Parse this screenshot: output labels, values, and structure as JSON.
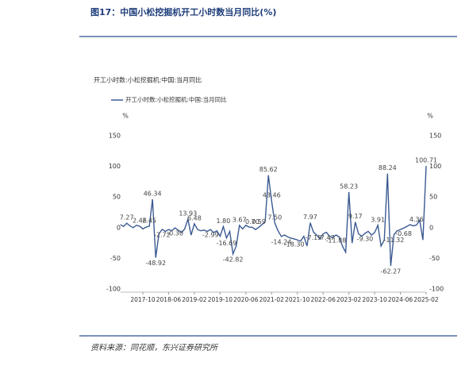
{
  "header": {
    "title": "图17：中国小松挖掘机开工小时数当月同比(%)"
  },
  "chart_data": {
    "type": "line",
    "title": "开工小时数:小松挖掘机:中国:当月同比",
    "y_unit": "%",
    "y2_unit": "%",
    "categories": [
      null,
      null,
      null,
      null,
      null,
      null,
      null,
      "2017-10",
      null,
      null,
      null,
      null,
      null,
      null,
      null,
      "2018-06",
      null,
      null,
      null,
      null,
      null,
      null,
      null,
      "2019-02",
      null,
      null,
      null,
      null,
      null,
      null,
      null,
      "2019-10",
      null,
      null,
      null,
      null,
      null,
      null,
      null,
      "2020-06",
      null,
      null,
      null,
      null,
      null,
      null,
      null,
      "2021-02",
      null,
      null,
      null,
      null,
      null,
      null,
      null,
      "2021-10",
      null,
      null,
      null,
      null,
      null,
      null,
      null,
      "2022-06",
      null,
      null,
      null,
      null,
      null,
      null,
      null,
      "2023-02",
      null,
      null,
      null,
      null,
      null,
      null,
      null,
      "2023-10",
      null,
      null,
      null,
      null,
      null,
      null,
      null,
      "2024-06",
      null,
      null,
      null,
      null,
      null,
      null,
      null,
      "2025-02"
    ],
    "series": [
      {
        "name": "开工小时数:小松挖掘机:中国:当月同比",
        "color": "#3b5a92",
        "values": [
          5,
          2,
          7.27,
          3,
          0,
          4,
          2.46,
          -2,
          1,
          2.45,
          46.34,
          -48.92,
          -10,
          -2.72,
          -6,
          -3,
          -5,
          -0.3,
          -4,
          -8,
          -2,
          13.93,
          -12,
          6.48,
          -3,
          -5,
          -4,
          -6,
          -2.99,
          -8,
          -5,
          -14,
          1.8,
          -16.69,
          -6,
          -42.82,
          -30,
          3.67,
          -2,
          4,
          1,
          0.7,
          -3,
          0.59,
          5,
          10,
          85.62,
          43.46,
          7.5,
          -5,
          -14.24,
          -12,
          -15,
          -17,
          -18.3,
          -20,
          -22,
          -14,
          -30,
          7.97,
          -7.15,
          -12,
          -18,
          -10,
          -7.47,
          -14,
          -16,
          -11.88,
          -15,
          -30,
          -40,
          58.23,
          -25,
          9.17,
          -10,
          -14,
          -9.3,
          -6,
          -12,
          -8,
          3.91,
          -30,
          -20,
          88.24,
          -62.27,
          -11.32,
          -5,
          -3,
          -0.68,
          2,
          5,
          3,
          4.36,
          12,
          -20,
          100.71
        ],
        "value_labels": [
          null,
          null,
          "7.27",
          null,
          null,
          null,
          "2.46",
          null,
          null,
          "2.45",
          "46.34",
          "-48.92",
          null,
          "-2.72",
          null,
          null,
          null,
          "-0.30",
          null,
          null,
          null,
          "13.93",
          null,
          "6.48",
          null,
          null,
          null,
          null,
          "-2.99",
          null,
          null,
          null,
          "1.80",
          "-16.69",
          null,
          "-42.82",
          null,
          "3.67",
          null,
          null,
          null,
          "0.70",
          null,
          "0.59",
          null,
          null,
          "85.62",
          "43.46",
          "7.50",
          null,
          "-14.24",
          null,
          null,
          null,
          "-18.30",
          null,
          null,
          null,
          null,
          "7.97",
          "-7.15",
          null,
          null,
          null,
          "-7.47",
          null,
          null,
          "-11.88",
          null,
          null,
          null,
          "58.23",
          null,
          "9.17",
          null,
          null,
          "-9.30",
          null,
          null,
          null,
          "3.91",
          null,
          null,
          "88.24",
          "-62.27",
          "-11.32",
          null,
          null,
          "-0.68",
          null,
          null,
          null,
          "4.36",
          null,
          null,
          "100.71"
        ]
      }
    ],
    "ylim": [
      -100,
      150
    ],
    "yticks": [
      -100,
      -50,
      0,
      50,
      100,
      150
    ],
    "y2lim": [
      -100,
      150
    ],
    "y2ticks": [
      -100,
      -50,
      0,
      50,
      100,
      150
    ],
    "grid": false
  },
  "source": "资料来源：同花顺，东兴证券研究所"
}
